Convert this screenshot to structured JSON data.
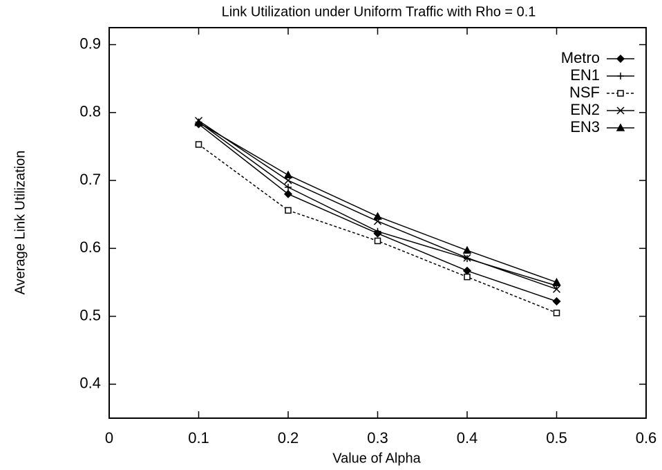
{
  "chart_data": {
    "type": "line",
    "title": "Link Utilization under Uniform Traffic with Rho = 0.1",
    "x_label": "Value of Alpha",
    "y_label": "Average Link Utilization",
    "x": [
      0.1,
      0.2,
      0.3,
      0.4,
      0.5
    ],
    "series": [
      {
        "name": "Metro",
        "color": "#000000",
        "marker": "diamond",
        "dashed": false,
        "values": [
          0.783,
          0.68,
          0.622,
          0.567,
          0.522
        ]
      },
      {
        "name": "EN1",
        "color": "#000000",
        "marker": "plus",
        "dashed": false,
        "values": [
          0.786,
          0.69,
          0.625,
          0.585,
          0.545
        ]
      },
      {
        "name": "NSF",
        "color": "#000000",
        "marker": "square",
        "dashed": true,
        "values": [
          0.753,
          0.656,
          0.611,
          0.558,
          0.505
        ]
      },
      {
        "name": "EN2",
        "color": "#000000",
        "marker": "cross",
        "dashed": false,
        "values": [
          0.788,
          0.7,
          0.64,
          0.586,
          0.54
        ]
      },
      {
        "name": "EN3",
        "color": "#000000",
        "marker": "triangle",
        "dashed": false,
        "values": [
          0.785,
          0.708,
          0.647,
          0.597,
          0.55
        ]
      }
    ],
    "xlim": [
      0,
      0.6
    ],
    "xticks": [
      0,
      0.1,
      0.2,
      0.3,
      0.4,
      0.5,
      0.6
    ],
    "ylim": [
      0.35,
      0.925
    ],
    "yticks": [
      0.4,
      0.5,
      0.6,
      0.7,
      0.8,
      0.9
    ],
    "legend": "upper right",
    "grid": false
  }
}
